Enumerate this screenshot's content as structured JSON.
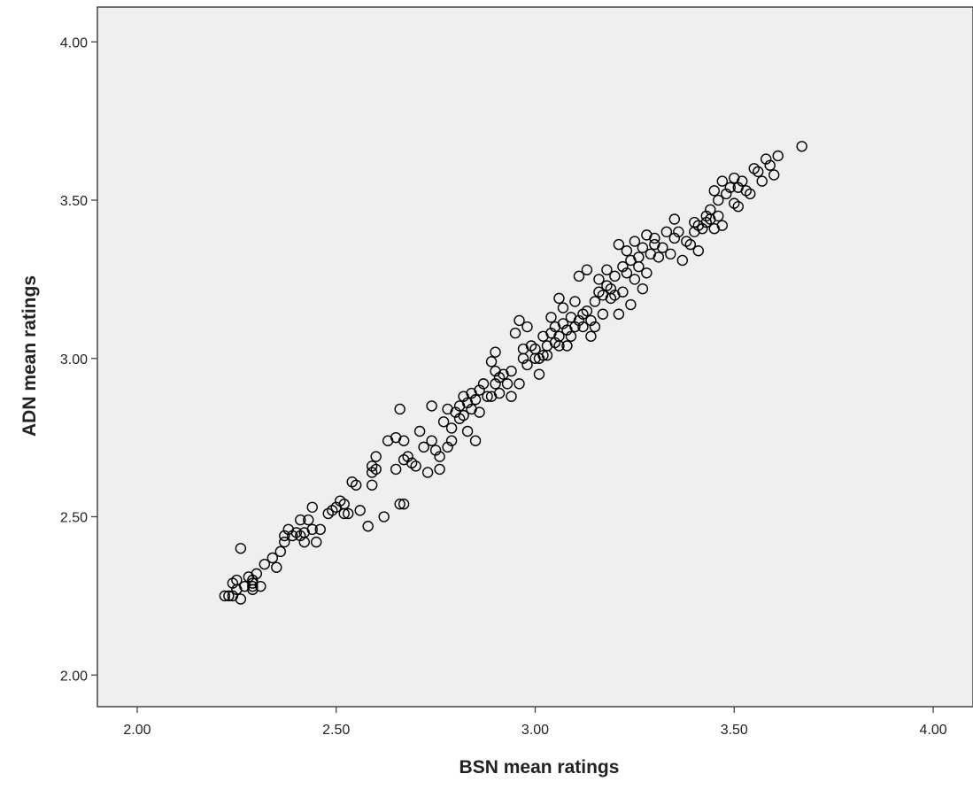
{
  "chart_data": {
    "type": "scatter",
    "title": "",
    "xlabel": "BSN mean ratings",
    "ylabel": "ADN mean ratings",
    "xlim": [
      1.9,
      4.1
    ],
    "ylim": [
      1.9,
      4.11
    ],
    "xticks": [
      2.0,
      2.5,
      3.0,
      3.5,
      4.0
    ],
    "yticks": [
      2.0,
      2.5,
      3.0,
      3.5,
      4.0
    ],
    "xtick_labels": [
      "2.00",
      "2.50",
      "3.00",
      "3.50",
      "4.00"
    ],
    "ytick_labels": [
      "2.00",
      "2.50",
      "3.00",
      "3.50",
      "4.00"
    ],
    "grid": false,
    "legend": "none",
    "colors": {
      "plot_background": "#efefef",
      "marker_stroke": "#000000",
      "axis": "#444444"
    },
    "series": [
      {
        "marker": "open-circle",
        "points": [
          [
            2.22,
            2.25
          ],
          [
            2.23,
            2.25
          ],
          [
            2.24,
            2.25
          ],
          [
            2.24,
            2.29
          ],
          [
            2.25,
            2.27
          ],
          [
            2.25,
            2.3
          ],
          [
            2.26,
            2.4
          ],
          [
            2.26,
            2.24
          ],
          [
            2.27,
            2.28
          ],
          [
            2.28,
            2.31
          ],
          [
            2.29,
            2.27
          ],
          [
            2.29,
            2.28
          ],
          [
            2.29,
            2.29
          ],
          [
            2.29,
            2.3
          ],
          [
            2.3,
            2.32
          ],
          [
            2.31,
            2.28
          ],
          [
            2.32,
            2.35
          ],
          [
            2.34,
            2.37
          ],
          [
            2.35,
            2.34
          ],
          [
            2.36,
            2.39
          ],
          [
            2.37,
            2.42
          ],
          [
            2.37,
            2.44
          ],
          [
            2.38,
            2.46
          ],
          [
            2.39,
            2.44
          ],
          [
            2.4,
            2.45
          ],
          [
            2.41,
            2.44
          ],
          [
            2.41,
            2.49
          ],
          [
            2.42,
            2.45
          ],
          [
            2.42,
            2.42
          ],
          [
            2.43,
            2.49
          ],
          [
            2.44,
            2.53
          ],
          [
            2.44,
            2.46
          ],
          [
            2.45,
            2.42
          ],
          [
            2.46,
            2.46
          ],
          [
            2.48,
            2.51
          ],
          [
            2.49,
            2.52
          ],
          [
            2.5,
            2.53
          ],
          [
            2.51,
            2.55
          ],
          [
            2.52,
            2.54
          ],
          [
            2.52,
            2.51
          ],
          [
            2.53,
            2.51
          ],
          [
            2.54,
            2.61
          ],
          [
            2.55,
            2.6
          ],
          [
            2.56,
            2.52
          ],
          [
            2.58,
            2.47
          ],
          [
            2.59,
            2.6
          ],
          [
            2.59,
            2.64
          ],
          [
            2.59,
            2.66
          ],
          [
            2.6,
            2.65
          ],
          [
            2.6,
            2.69
          ],
          [
            2.62,
            2.5
          ],
          [
            2.63,
            2.74
          ],
          [
            2.65,
            2.75
          ],
          [
            2.65,
            2.65
          ],
          [
            2.66,
            2.84
          ],
          [
            2.66,
            2.54
          ],
          [
            2.67,
            2.54
          ],
          [
            2.67,
            2.74
          ],
          [
            2.67,
            2.68
          ],
          [
            2.68,
            2.69
          ],
          [
            2.69,
            2.67
          ],
          [
            2.7,
            2.66
          ],
          [
            2.71,
            2.77
          ],
          [
            2.72,
            2.72
          ],
          [
            2.73,
            2.64
          ],
          [
            2.74,
            2.85
          ],
          [
            2.74,
            2.74
          ],
          [
            2.75,
            2.71
          ],
          [
            2.76,
            2.69
          ],
          [
            2.76,
            2.65
          ],
          [
            2.77,
            2.8
          ],
          [
            2.78,
            2.72
          ],
          [
            2.78,
            2.84
          ],
          [
            2.79,
            2.74
          ],
          [
            2.79,
            2.78
          ],
          [
            2.8,
            2.83
          ],
          [
            2.81,
            2.85
          ],
          [
            2.81,
            2.81
          ],
          [
            2.82,
            2.88
          ],
          [
            2.82,
            2.82
          ],
          [
            2.83,
            2.86
          ],
          [
            2.83,
            2.77
          ],
          [
            2.84,
            2.89
          ],
          [
            2.84,
            2.84
          ],
          [
            2.85,
            2.87
          ],
          [
            2.85,
            2.74
          ],
          [
            2.86,
            2.9
          ],
          [
            2.86,
            2.83
          ],
          [
            2.87,
            2.92
          ],
          [
            2.88,
            2.88
          ],
          [
            2.89,
            2.99
          ],
          [
            2.89,
            2.88
          ],
          [
            2.9,
            3.02
          ],
          [
            2.9,
            2.96
          ],
          [
            2.9,
            2.92
          ],
          [
            2.91,
            2.94
          ],
          [
            2.91,
            2.89
          ],
          [
            2.92,
            2.95
          ],
          [
            2.93,
            2.92
          ],
          [
            2.94,
            2.88
          ],
          [
            2.94,
            2.96
          ],
          [
            2.95,
            3.08
          ],
          [
            2.96,
            3.12
          ],
          [
            2.96,
            2.92
          ],
          [
            2.97,
            3.03
          ],
          [
            2.97,
            3.0
          ],
          [
            2.98,
            3.1
          ],
          [
            2.98,
            2.98
          ],
          [
            2.99,
            3.04
          ],
          [
            3.0,
            3.0
          ],
          [
            3.0,
            3.03
          ],
          [
            3.01,
            2.95
          ],
          [
            3.01,
            3.0
          ],
          [
            3.02,
            3.01
          ],
          [
            3.02,
            3.07
          ],
          [
            3.03,
            3.01
          ],
          [
            3.03,
            3.04
          ],
          [
            3.04,
            3.08
          ],
          [
            3.04,
            3.13
          ],
          [
            3.05,
            3.05
          ],
          [
            3.05,
            3.1
          ],
          [
            3.06,
            3.19
          ],
          [
            3.06,
            3.04
          ],
          [
            3.06,
            3.07
          ],
          [
            3.07,
            3.11
          ],
          [
            3.07,
            3.16
          ],
          [
            3.08,
            3.09
          ],
          [
            3.08,
            3.04
          ],
          [
            3.09,
            3.13
          ],
          [
            3.09,
            3.07
          ],
          [
            3.1,
            3.18
          ],
          [
            3.1,
            3.1
          ],
          [
            3.11,
            3.12
          ],
          [
            3.11,
            3.26
          ],
          [
            3.12,
            3.14
          ],
          [
            3.12,
            3.1
          ],
          [
            3.13,
            3.15
          ],
          [
            3.13,
            3.28
          ],
          [
            3.14,
            3.07
          ],
          [
            3.14,
            3.12
          ],
          [
            3.15,
            3.18
          ],
          [
            3.15,
            3.1
          ],
          [
            3.16,
            3.21
          ],
          [
            3.16,
            3.25
          ],
          [
            3.17,
            3.14
          ],
          [
            3.17,
            3.2
          ],
          [
            3.18,
            3.23
          ],
          [
            3.18,
            3.28
          ],
          [
            3.19,
            3.19
          ],
          [
            3.19,
            3.22
          ],
          [
            3.2,
            3.26
          ],
          [
            3.2,
            3.2
          ],
          [
            3.21,
            3.14
          ],
          [
            3.21,
            3.36
          ],
          [
            3.22,
            3.29
          ],
          [
            3.22,
            3.21
          ],
          [
            3.23,
            3.27
          ],
          [
            3.23,
            3.34
          ],
          [
            3.24,
            3.17
          ],
          [
            3.24,
            3.31
          ],
          [
            3.25,
            3.25
          ],
          [
            3.25,
            3.37
          ],
          [
            3.26,
            3.32
          ],
          [
            3.26,
            3.29
          ],
          [
            3.27,
            3.22
          ],
          [
            3.27,
            3.35
          ],
          [
            3.28,
            3.39
          ],
          [
            3.28,
            3.27
          ],
          [
            3.29,
            3.33
          ],
          [
            3.3,
            3.36
          ],
          [
            3.3,
            3.38
          ],
          [
            3.31,
            3.32
          ],
          [
            3.32,
            3.35
          ],
          [
            3.33,
            3.4
          ],
          [
            3.34,
            3.33
          ],
          [
            3.35,
            3.44
          ],
          [
            3.35,
            3.38
          ],
          [
            3.36,
            3.4
          ],
          [
            3.37,
            3.31
          ],
          [
            3.38,
            3.37
          ],
          [
            3.39,
            3.36
          ],
          [
            3.4,
            3.43
          ],
          [
            3.4,
            3.4
          ],
          [
            3.41,
            3.34
          ],
          [
            3.41,
            3.42
          ],
          [
            3.42,
            3.41
          ],
          [
            3.43,
            3.45
          ],
          [
            3.43,
            3.43
          ],
          [
            3.44,
            3.47
          ],
          [
            3.44,
            3.44
          ],
          [
            3.45,
            3.53
          ],
          [
            3.45,
            3.41
          ],
          [
            3.46,
            3.45
          ],
          [
            3.46,
            3.5
          ],
          [
            3.47,
            3.56
          ],
          [
            3.47,
            3.42
          ],
          [
            3.48,
            3.52
          ],
          [
            3.49,
            3.54
          ],
          [
            3.5,
            3.57
          ],
          [
            3.5,
            3.49
          ],
          [
            3.51,
            3.54
          ],
          [
            3.51,
            3.48
          ],
          [
            3.52,
            3.56
          ],
          [
            3.53,
            3.53
          ],
          [
            3.54,
            3.52
          ],
          [
            3.55,
            3.6
          ],
          [
            3.56,
            3.59
          ],
          [
            3.57,
            3.56
          ],
          [
            3.58,
            3.63
          ],
          [
            3.59,
            3.61
          ],
          [
            3.6,
            3.58
          ],
          [
            3.61,
            3.64
          ],
          [
            3.67,
            3.67
          ]
        ]
      }
    ]
  }
}
